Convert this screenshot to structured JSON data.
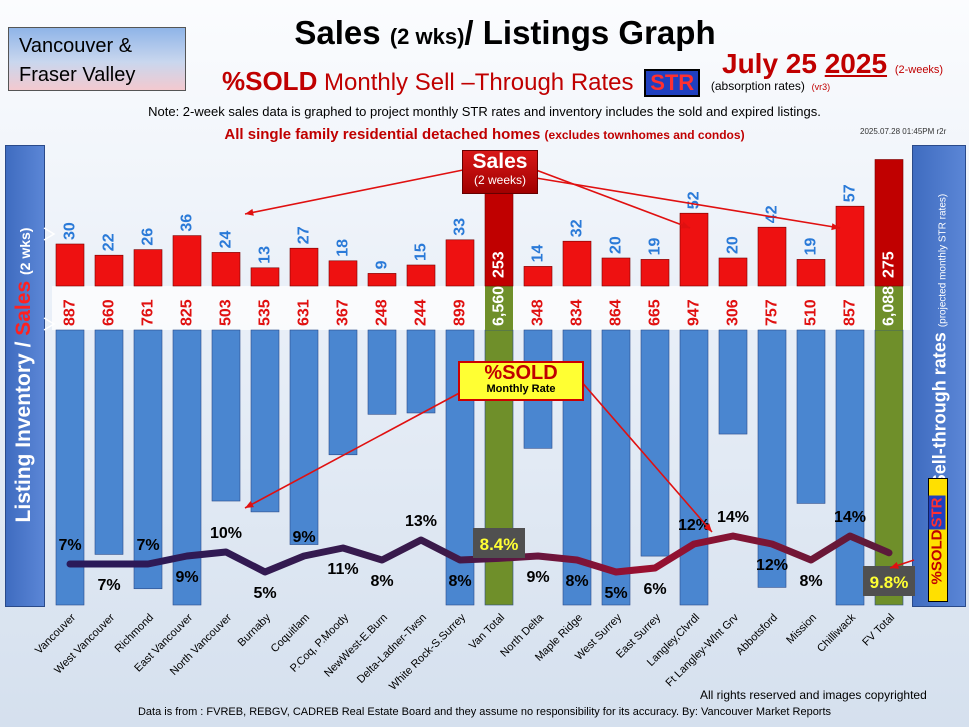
{
  "region_label": [
    "Vancouver &",
    "Fraser Valley"
  ],
  "title_main": "Sales",
  "title_paren": "(2 wks)",
  "title_rest": "/ Listings Graph",
  "subtitle": {
    "sold": "%SOLD",
    "text": "Monthly Sell –Through Rates",
    "badge": "STR",
    "abs": "(absorption rates)",
    "ver": "(vr3)"
  },
  "date": {
    "text": "July 25",
    "year": "2025",
    "suffix": "(2-weeks)"
  },
  "note": "Note: 2-week sales data is graphed to project monthly STR rates and inventory includes the sold and expired listings.",
  "note2_main": "All single family residential detached homes",
  "note2_sub": "(excludes townhomes and condos)",
  "stamp": "2025.07.28 01:45PM r2r",
  "left_axis": {
    "a": "Listing Inventory / ",
    "b": "Sales",
    "c": "(2 wks)"
  },
  "right_axis": {
    "a": "Sell-through rates",
    "b": "(projected monthly STR rates)"
  },
  "right_tag": {
    "a": "%SOLD",
    "b": "STR"
  },
  "callout_sales": {
    "a": "Sales",
    "b": "(2 weeks)"
  },
  "callout_sold": {
    "a": "%SOLD",
    "b": "Monthly Rate"
  },
  "footer_rights": "All rights reserved and  images copyrighted",
  "footer_source": "Data is from : FVREB, REBGV, CADREB Real Estate Board and they assume no responsibility for its accuracy. By: Vancouver Market Reports",
  "colors": {
    "sales": "#ee1111",
    "listings": "#4a86d0",
    "total": "#6f8f2a",
    "total_sales": "#c00000",
    "line": "#3a1a4a",
    "pct_box": "#505050"
  },
  "chart_data": {
    "type": "bar",
    "categories": [
      "Vancouver",
      "West Vancouver",
      "Richmond",
      "East Vancouver",
      "North Vancouver",
      "Burnaby",
      "Coquitlam",
      "P.Coq, P.Moody",
      "NewWest-E.Burn",
      "Delta-Ladner-Twsn",
      "White Rock-S.Surrey",
      "Van Total",
      "North Delta",
      "Maple Ridge",
      "West Surrey",
      "East Surrey",
      "Langley,Clvrdl",
      "Ft Langley-Wlnt Grv",
      "Abbotsford",
      "Mission",
      "Chilliwack",
      "FV Total"
    ],
    "series": [
      {
        "name": "Sales",
        "values": [
          30,
          22,
          26,
          36,
          24,
          13,
          27,
          18,
          9,
          15,
          33,
          253,
          14,
          32,
          20,
          19,
          52,
          20,
          42,
          19,
          57,
          275
        ]
      },
      {
        "name": "Listing Inventory",
        "values": [
          887,
          660,
          761,
          825,
          503,
          535,
          631,
          367,
          248,
          244,
          899,
          6560,
          348,
          834,
          864,
          665,
          947,
          306,
          757,
          510,
          857,
          6088
        ]
      },
      {
        "name": "%SOLD",
        "values": [
          7,
          7,
          7,
          9,
          10,
          5,
          9,
          11,
          8,
          13,
          8,
          8.4,
          9,
          8,
          5,
          6,
          12,
          14,
          12,
          8,
          14,
          9.8
        ]
      }
    ],
    "sales_labels": [
      "30",
      "22",
      "26",
      "36",
      "24",
      "13",
      "27",
      "18",
      "9",
      "15",
      "33",
      "253",
      "14",
      "32",
      "20",
      "19",
      "52",
      "20",
      "42",
      "19",
      "57",
      "275"
    ],
    "listing_labels": [
      "887",
      "660",
      "761",
      "825",
      "503",
      "535",
      "631",
      "367",
      "248",
      "244",
      "899",
      "6,560",
      "348",
      "834",
      "864",
      "665",
      "947",
      "306",
      "757",
      "510",
      "857",
      "6,088"
    ],
    "pct_labels": [
      "7%",
      "7%",
      "7%",
      "9%",
      "10%",
      "5%",
      "9%",
      "11%",
      "8%",
      "13%",
      "8%",
      "8.4%",
      "9%",
      "8%",
      "5%",
      "6%",
      "12%",
      "14%",
      "12%",
      "8%",
      "14%",
      "9.8%"
    ],
    "total_indices": [
      11,
      21
    ]
  }
}
